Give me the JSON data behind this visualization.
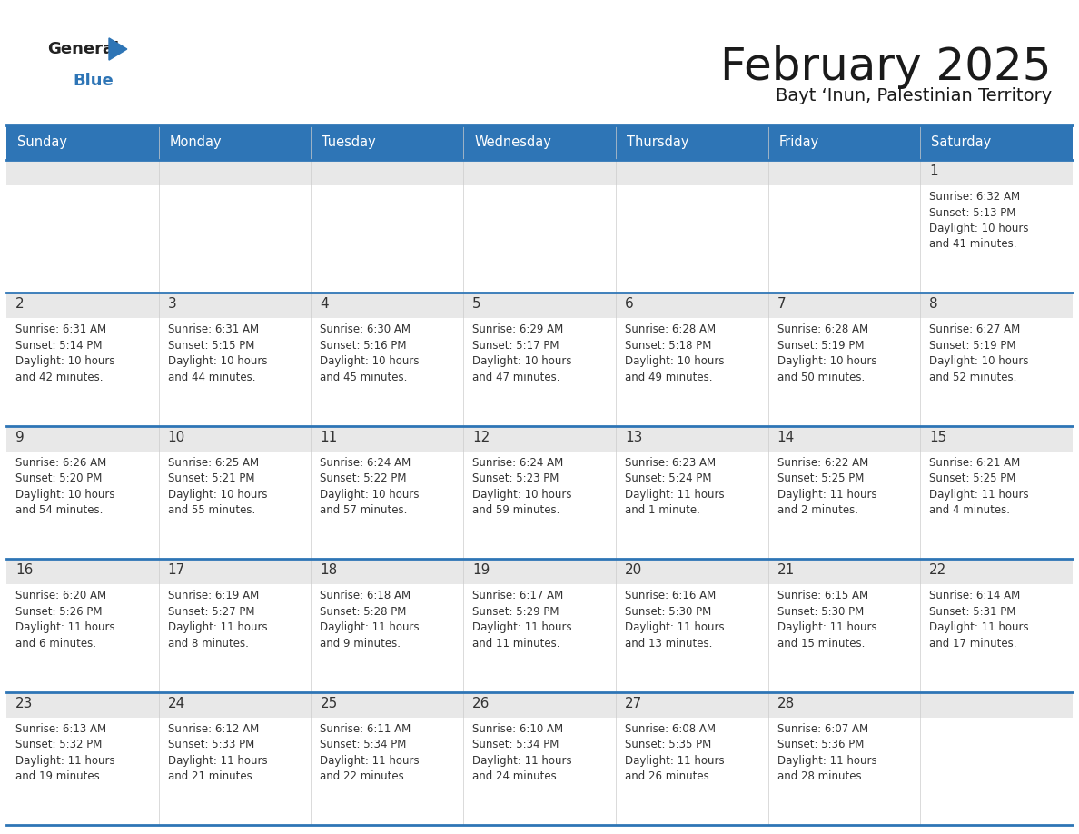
{
  "title": "February 2025",
  "subtitle": "Bayt ‘Inun, Palestinian Territory",
  "days_of_week": [
    "Sunday",
    "Monday",
    "Tuesday",
    "Wednesday",
    "Thursday",
    "Friday",
    "Saturday"
  ],
  "header_bg": "#2e75b6",
  "header_text": "#ffffff",
  "cell_top_bg": "#e8e8e8",
  "cell_body_bg": "#ffffff",
  "divider_color": "#2e75b6",
  "text_color": "#333333",
  "title_color": "#1a1a1a",
  "calendar_data": [
    [
      null,
      null,
      null,
      null,
      null,
      null,
      {
        "day": 1,
        "sunrise": "6:32 AM",
        "sunset": "5:13 PM",
        "daylight": "10 hours and 41 minutes."
      }
    ],
    [
      {
        "day": 2,
        "sunrise": "6:31 AM",
        "sunset": "5:14 PM",
        "daylight": "10 hours and 42 minutes."
      },
      {
        "day": 3,
        "sunrise": "6:31 AM",
        "sunset": "5:15 PM",
        "daylight": "10 hours and 44 minutes."
      },
      {
        "day": 4,
        "sunrise": "6:30 AM",
        "sunset": "5:16 PM",
        "daylight": "10 hours and 45 minutes."
      },
      {
        "day": 5,
        "sunrise": "6:29 AM",
        "sunset": "5:17 PM",
        "daylight": "10 hours and 47 minutes."
      },
      {
        "day": 6,
        "sunrise": "6:28 AM",
        "sunset": "5:18 PM",
        "daylight": "10 hours and 49 minutes."
      },
      {
        "day": 7,
        "sunrise": "6:28 AM",
        "sunset": "5:19 PM",
        "daylight": "10 hours and 50 minutes."
      },
      {
        "day": 8,
        "sunrise": "6:27 AM",
        "sunset": "5:19 PM",
        "daylight": "10 hours and 52 minutes."
      }
    ],
    [
      {
        "day": 9,
        "sunrise": "6:26 AM",
        "sunset": "5:20 PM",
        "daylight": "10 hours and 54 minutes."
      },
      {
        "day": 10,
        "sunrise": "6:25 AM",
        "sunset": "5:21 PM",
        "daylight": "10 hours and 55 minutes."
      },
      {
        "day": 11,
        "sunrise": "6:24 AM",
        "sunset": "5:22 PM",
        "daylight": "10 hours and 57 minutes."
      },
      {
        "day": 12,
        "sunrise": "6:24 AM",
        "sunset": "5:23 PM",
        "daylight": "10 hours and 59 minutes."
      },
      {
        "day": 13,
        "sunrise": "6:23 AM",
        "sunset": "5:24 PM",
        "daylight": "11 hours and 1 minute."
      },
      {
        "day": 14,
        "sunrise": "6:22 AM",
        "sunset": "5:25 PM",
        "daylight": "11 hours and 2 minutes."
      },
      {
        "day": 15,
        "sunrise": "6:21 AM",
        "sunset": "5:25 PM",
        "daylight": "11 hours and 4 minutes."
      }
    ],
    [
      {
        "day": 16,
        "sunrise": "6:20 AM",
        "sunset": "5:26 PM",
        "daylight": "11 hours and 6 minutes."
      },
      {
        "day": 17,
        "sunrise": "6:19 AM",
        "sunset": "5:27 PM",
        "daylight": "11 hours and 8 minutes."
      },
      {
        "day": 18,
        "sunrise": "6:18 AM",
        "sunset": "5:28 PM",
        "daylight": "11 hours and 9 minutes."
      },
      {
        "day": 19,
        "sunrise": "6:17 AM",
        "sunset": "5:29 PM",
        "daylight": "11 hours and 11 minutes."
      },
      {
        "day": 20,
        "sunrise": "6:16 AM",
        "sunset": "5:30 PM",
        "daylight": "11 hours and 13 minutes."
      },
      {
        "day": 21,
        "sunrise": "6:15 AM",
        "sunset": "5:30 PM",
        "daylight": "11 hours and 15 minutes."
      },
      {
        "day": 22,
        "sunrise": "6:14 AM",
        "sunset": "5:31 PM",
        "daylight": "11 hours and 17 minutes."
      }
    ],
    [
      {
        "day": 23,
        "sunrise": "6:13 AM",
        "sunset": "5:32 PM",
        "daylight": "11 hours and 19 minutes."
      },
      {
        "day": 24,
        "sunrise": "6:12 AM",
        "sunset": "5:33 PM",
        "daylight": "11 hours and 21 minutes."
      },
      {
        "day": 25,
        "sunrise": "6:11 AM",
        "sunset": "5:34 PM",
        "daylight": "11 hours and 22 minutes."
      },
      {
        "day": 26,
        "sunrise": "6:10 AM",
        "sunset": "5:34 PM",
        "daylight": "11 hours and 24 minutes."
      },
      {
        "day": 27,
        "sunrise": "6:08 AM",
        "sunset": "5:35 PM",
        "daylight": "11 hours and 26 minutes."
      },
      {
        "day": 28,
        "sunrise": "6:07 AM",
        "sunset": "5:36 PM",
        "daylight": "11 hours and 28 minutes."
      },
      null
    ]
  ]
}
